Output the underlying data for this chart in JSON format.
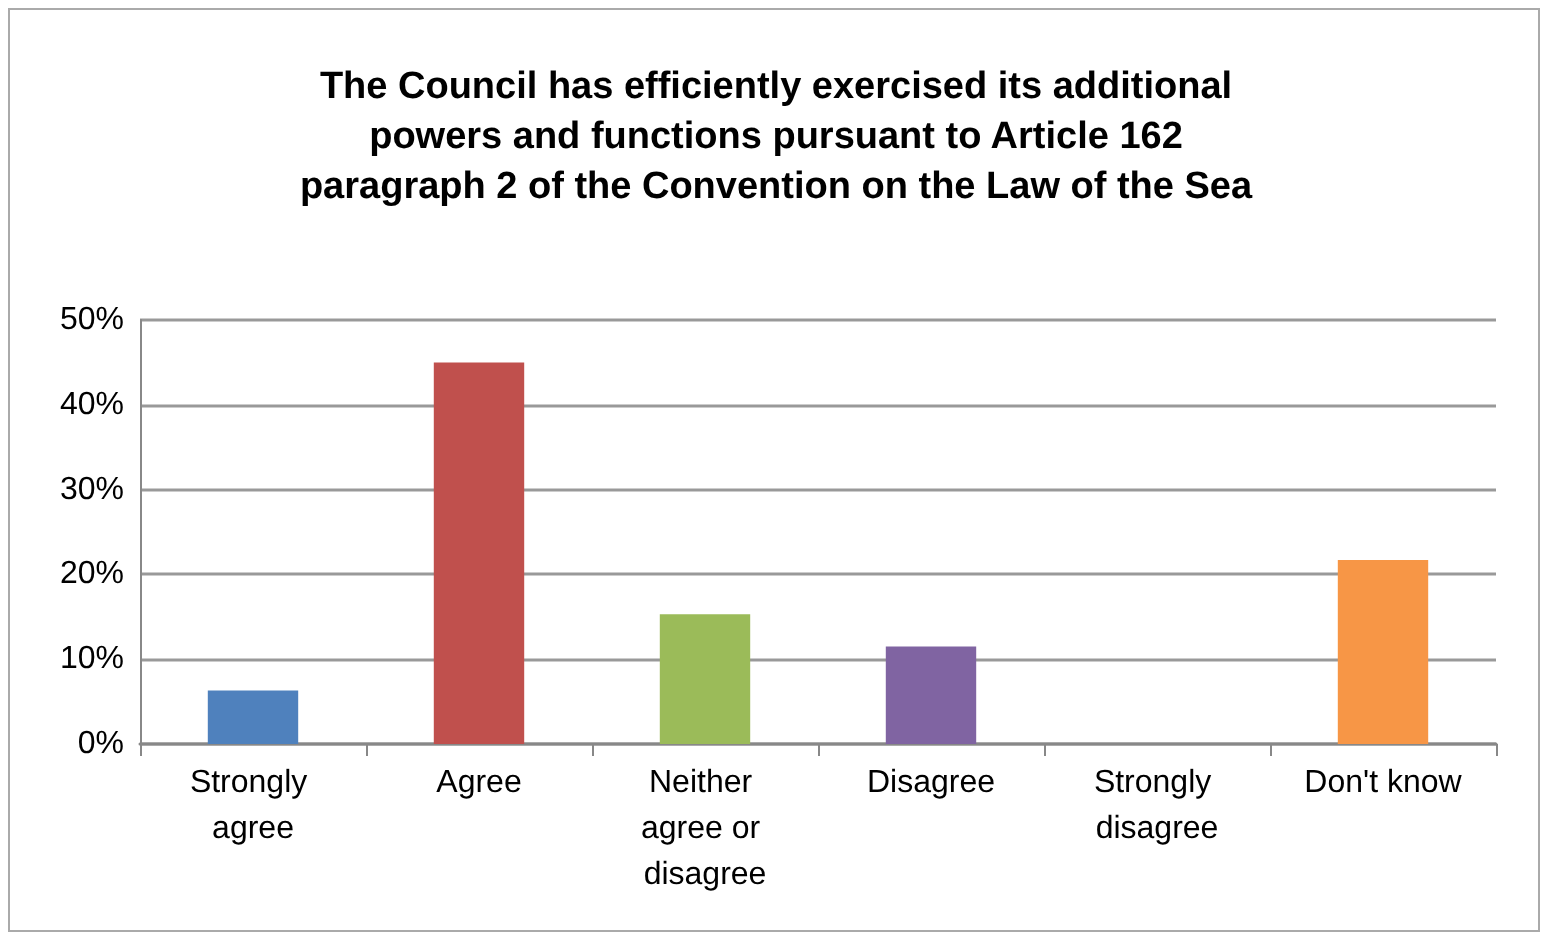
{
  "chart_data": {
    "type": "bar",
    "title": "The Council has efficiently exercised its additional powers and functions pursuant to Article 162 paragraph 2 of the Convention on the Law of the Sea",
    "categories": [
      "Strongly agree",
      "Agree",
      "Neither agree or disagree",
      "Disagree",
      "Strongly disagree",
      "Don't know"
    ],
    "values": [
      6.3,
      45,
      15.3,
      11.5,
      0,
      21.7
    ],
    "colors": [
      "#4f81bd",
      "#c0504d",
      "#9bbb59",
      "#8064a2",
      "#4bacc6",
      "#f79646"
    ],
    "ylim": [
      0,
      50
    ],
    "yticks": [
      {
        "value": 0,
        "label": "0%"
      },
      {
        "value": 10,
        "label": "10%"
      },
      {
        "value": 20,
        "label": "20%"
      },
      {
        "value": 30,
        "label": "30%"
      },
      {
        "value": 40,
        "label": "40%"
      },
      {
        "value": 50,
        "label": "50%"
      }
    ],
    "grid": "y"
  }
}
